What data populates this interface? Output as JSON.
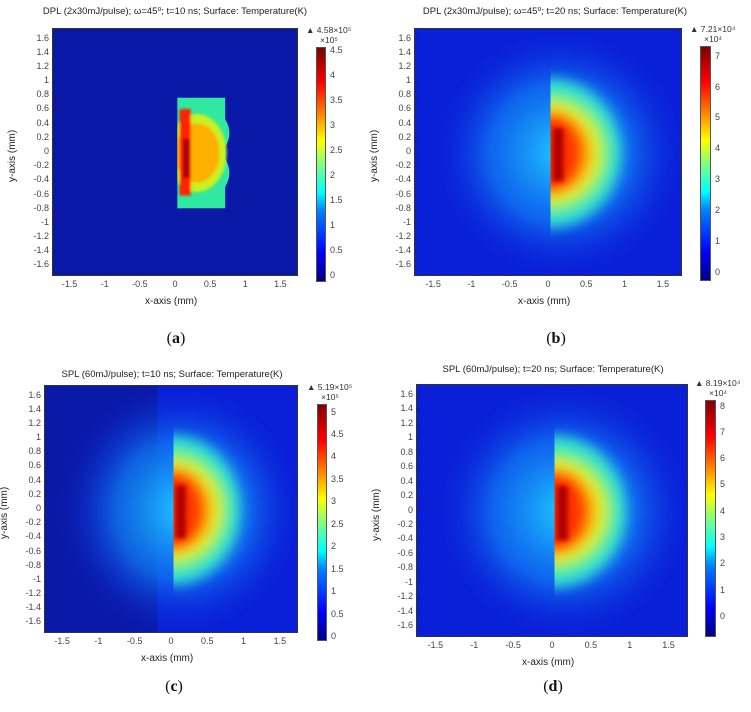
{
  "chart_data": [
    {
      "type": "heatmap",
      "panel_label": "a",
      "title": "DPL (2x30mJ/pulse); ω=45⁰; t=10 ns; Surface: Temperature(K)",
      "xlabel": "x-axis (mm)",
      "ylabel": "y-axis (mm)",
      "xlim": [
        -1.75,
        1.75
      ],
      "ylim": [
        -1.75,
        1.75
      ],
      "x_ticks": [
        "-1.5",
        "-1",
        "-0.5",
        "0",
        "0.5",
        "1",
        "1.5"
      ],
      "y_ticks": [
        "1.6",
        "1.4",
        "1.2",
        "1",
        "0.8",
        "0.6",
        "0.4",
        "0.2",
        "0",
        "-0.2",
        "-0.4",
        "-0.6",
        "-0.8",
        "-1",
        "-1.2",
        "-1.4",
        "-1.6"
      ],
      "colorbar": {
        "max_label": "▲ 4.58×10⁵",
        "multiplier": "×10⁵",
        "ticks": [
          "0",
          "0.5",
          "1",
          "1.5",
          "2",
          "2.5",
          "3",
          "3.5",
          "4",
          "4.5"
        ],
        "range": [
          -0.11,
          4.58
        ],
        "max_value": 458000
      },
      "pattern": "sharp-d-shape"
    },
    {
      "type": "heatmap",
      "panel_label": "b",
      "title": "DPL (2x30mJ/pulse); ω=45⁰; t=20 ns; Surface: Temperature(K)",
      "xlabel": "x-axis (mm)",
      "ylabel": "y-axis (mm)",
      "xlim": [
        -1.75,
        1.75
      ],
      "ylim": [
        -1.75,
        1.75
      ],
      "x_ticks": [
        "-1.5",
        "-1",
        "-0.5",
        "0",
        "0.5",
        "1",
        "1.5"
      ],
      "y_ticks": [
        "1.6",
        "1.4",
        "1.2",
        "1",
        "0.8",
        "0.6",
        "0.4",
        "0.2",
        "0",
        "-0.2",
        "-0.4",
        "-0.6",
        "-0.8",
        "-1",
        "-1.2",
        "-1.4",
        "-1.6"
      ],
      "colorbar": {
        "max_label": "▲ 7.21×10⁴",
        "multiplier": "×10⁴",
        "ticks": [
          "0",
          "1",
          "2",
          "3",
          "4",
          "5",
          "6",
          "7"
        ],
        "range": [
          -0.27,
          7.35
        ],
        "max_value": 72100
      },
      "pattern": "diffuse"
    },
    {
      "type": "heatmap",
      "panel_label": "c",
      "title": "SPL (60mJ/pulse); t=10 ns; Surface: Temperature(K)",
      "xlabel": "x-axis (mm)",
      "ylabel": "y-axis (mm)",
      "xlim": [
        -1.75,
        1.75
      ],
      "ylim": [
        -1.75,
        1.75
      ],
      "x_ticks": [
        "-1.5",
        "-1",
        "-0.5",
        "0",
        "0.5",
        "1",
        "1.5"
      ],
      "y_ticks": [
        "1.6",
        "1.4",
        "1.2",
        "1",
        "0.8",
        "0.6",
        "0.4",
        "0.2",
        "0",
        "-0.2",
        "-0.4",
        "-0.6",
        "-0.8",
        "-1",
        "-1.2",
        "-1.4",
        "-1.6"
      ],
      "colorbar": {
        "max_label": "▲ 5.19×10⁵",
        "multiplier": "×10⁵",
        "ticks": [
          "0",
          "0.5",
          "1",
          "1.5",
          "2",
          "2.5",
          "3",
          "3.5",
          "4",
          "4.5",
          "5"
        ],
        "range": [
          -0.09,
          5.19
        ],
        "max_value": 519000
      },
      "pattern": "diffuse-dark-left"
    },
    {
      "type": "heatmap",
      "panel_label": "d",
      "title": "SPL (60mJ/pulse); t=20 ns; Surface: Temperature(K)",
      "xlabel": "x-axis (mm)",
      "ylabel": "y-axis (mm)",
      "xlim": [
        -1.75,
        1.75
      ],
      "ylim": [
        -1.75,
        1.75
      ],
      "x_ticks": [
        "-1.5",
        "-1",
        "-0.5",
        "0",
        "0.5",
        "1",
        "1.5"
      ],
      "y_ticks": [
        "1.6",
        "1.4",
        "1.2",
        "1",
        "0.8",
        "0.6",
        "0.4",
        "0.2",
        "0",
        "-0.2",
        "-0.4",
        "-0.6",
        "-0.8",
        "-1",
        "-1.2",
        "-1.4",
        "-1.6"
      ],
      "colorbar": {
        "max_label": "▲ 8.19×10⁴",
        "multiplier": "×10⁴",
        "ticks": [
          "0",
          "1",
          "2",
          "3",
          "4",
          "5",
          "6",
          "7",
          "8"
        ],
        "range": [
          -0.76,
          8.25
        ],
        "max_value": 81900
      },
      "pattern": "diffuse"
    }
  ]
}
